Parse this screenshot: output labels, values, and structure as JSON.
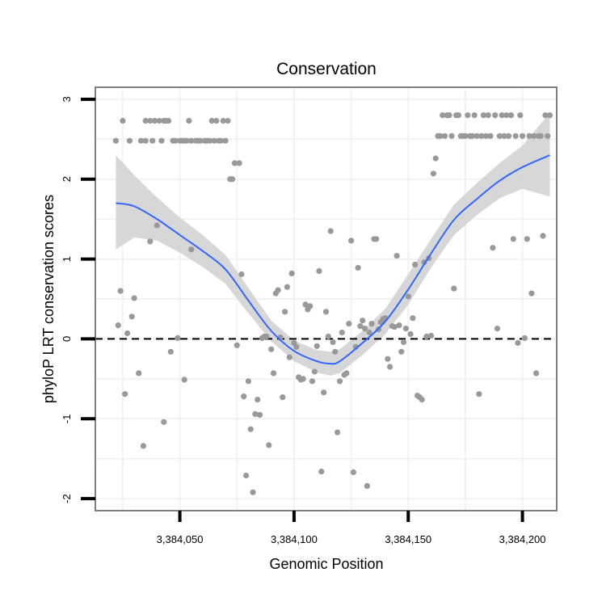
{
  "chart_data": {
    "type": "scatter",
    "title": "Conservation",
    "xlabel": "Genomic Position",
    "ylabel": "phyloP LRT conservation scores",
    "xlim": [
      3384013,
      3384215
    ],
    "ylim": [
      -2.15,
      3.15
    ],
    "x_ticks": [
      {
        "value": 3384050,
        "label": "3,384,050"
      },
      {
        "value": 3384100,
        "label": "3,384,100"
      },
      {
        "value": 3384150,
        "label": "3,384,150"
      },
      {
        "value": 3384200,
        "label": "3,384,200"
      }
    ],
    "y_ticks": [
      {
        "value": -2,
        "label": "-2"
      },
      {
        "value": -1,
        "label": "-1"
      },
      {
        "value": 0,
        "label": "0"
      },
      {
        "value": 1,
        "label": "1"
      },
      {
        "value": 2,
        "label": "2"
      },
      {
        "value": 3,
        "label": "3"
      }
    ],
    "reference_line": {
      "y": 0,
      "style": "dashed"
    },
    "colors": {
      "points": "#999999",
      "smooth": "#3366ff",
      "band": "#d3d3d3",
      "frame": "#7f7f7f",
      "grid": "#f2f2f2"
    },
    "points": [
      [
        3384022,
        2.48
      ],
      [
        3384023,
        0.17
      ],
      [
        3384024,
        0.6
      ],
      [
        3384025,
        2.73
      ],
      [
        3384026,
        -0.69
      ],
      [
        3384027,
        0.07
      ],
      [
        3384028,
        2.48
      ],
      [
        3384029,
        0.28
      ],
      [
        3384030,
        0.51
      ],
      [
        3384032,
        -0.43
      ],
      [
        3384033,
        2.48
      ],
      [
        3384034,
        -1.34
      ],
      [
        3384035,
        2.48
      ],
      [
        3384035,
        2.73
      ],
      [
        3384037,
        2.73
      ],
      [
        3384037,
        1.22
      ],
      [
        3384038,
        2.48
      ],
      [
        3384039,
        2.73
      ],
      [
        3384040,
        1.42
      ],
      [
        3384041,
        2.73
      ],
      [
        3384042,
        2.48
      ],
      [
        3384043,
        2.73
      ],
      [
        3384043,
        -1.04
      ],
      [
        3384044,
        2.73
      ],
      [
        3384045,
        2.73
      ],
      [
        3384046,
        -0.16
      ],
      [
        3384047,
        2.48
      ],
      [
        3384048,
        2.48
      ],
      [
        3384049,
        0.01
      ],
      [
        3384050,
        2.48
      ],
      [
        3384051,
        2.48
      ],
      [
        3384052,
        2.48
      ],
      [
        3384052,
        -0.51
      ],
      [
        3384053,
        2.48
      ],
      [
        3384054,
        2.73
      ],
      [
        3384055,
        1.12
      ],
      [
        3384055,
        2.48
      ],
      [
        3384057,
        2.48
      ],
      [
        3384058,
        2.48
      ],
      [
        3384059,
        2.48
      ],
      [
        3384061,
        2.48
      ],
      [
        3384062,
        2.48
      ],
      [
        3384063,
        2.48
      ],
      [
        3384064,
        2.73
      ],
      [
        3384065,
        2.48
      ],
      [
        3384066,
        2.73
      ],
      [
        3384067,
        2.48
      ],
      [
        3384068,
        2.48
      ],
      [
        3384069,
        2.73
      ],
      [
        3384070,
        2.48
      ],
      [
        3384071,
        2.73
      ],
      [
        3384072,
        2.0
      ],
      [
        3384073,
        2.0
      ],
      [
        3384074,
        2.2
      ],
      [
        3384075,
        -0.08
      ],
      [
        3384076,
        2.2
      ],
      [
        3384077,
        0.81
      ],
      [
        3384078,
        -0.72
      ],
      [
        3384079,
        -1.71
      ],
      [
        3384080,
        -0.53
      ],
      [
        3384081,
        -1.13
      ],
      [
        3384082,
        -1.92
      ],
      [
        3384083,
        -0.94
      ],
      [
        3384084,
        -0.76
      ],
      [
        3384085,
        -0.95
      ],
      [
        3384086,
        0.01
      ],
      [
        3384087,
        0.03
      ],
      [
        3384088,
        0.03
      ],
      [
        3384089,
        -1.33
      ],
      [
        3384090,
        -0.13
      ],
      [
        3384091,
        -0.43
      ],
      [
        3384092,
        0.57
      ],
      [
        3384093,
        0.61
      ],
      [
        3384094,
        0.02
      ],
      [
        3384095,
        -0.73
      ],
      [
        3384096,
        0.34
      ],
      [
        3384097,
        0.65
      ],
      [
        3384098,
        -0.23
      ],
      [
        3384099,
        0.82
      ],
      [
        3384100,
        -0.05
      ],
      [
        3384101,
        -0.1
      ],
      [
        3384102,
        -0.48
      ],
      [
        3384103,
        -0.51
      ],
      [
        3384104,
        -0.5
      ],
      [
        3384105,
        0.43
      ],
      [
        3384106,
        0.37
      ],
      [
        3384107,
        0.41
      ],
      [
        3384108,
        -0.53
      ],
      [
        3384109,
        -0.41
      ],
      [
        3384110,
        -0.09
      ],
      [
        3384111,
        0.85
      ],
      [
        3384112,
        -1.66
      ],
      [
        3384113,
        -0.67
      ],
      [
        3384114,
        0.34
      ],
      [
        3384115,
        0.03
      ],
      [
        3384116,
        1.35
      ],
      [
        3384117,
        -0.04
      ],
      [
        3384118,
        -0.16
      ],
      [
        3384119,
        -1.17
      ],
      [
        3384120,
        -0.53
      ],
      [
        3384121,
        0.08
      ],
      [
        3384122,
        -0.45
      ],
      [
        3384123,
        -0.43
      ],
      [
        3384124,
        0.19
      ],
      [
        3384125,
        1.23
      ],
      [
        3384126,
        -1.67
      ],
      [
        3384127,
        -0.1
      ],
      [
        3384128,
        0.89
      ],
      [
        3384129,
        0.16
      ],
      [
        3384130,
        0.23
      ],
      [
        3384131,
        0.13
      ],
      [
        3384132,
        -1.84
      ],
      [
        3384133,
        0.08
      ],
      [
        3384134,
        0.19
      ],
      [
        3384135,
        1.25
      ],
      [
        3384136,
        1.25
      ],
      [
        3384137,
        0.12
      ],
      [
        3384138,
        0.21
      ],
      [
        3384139,
        0.25
      ],
      [
        3384140,
        0.26
      ],
      [
        3384141,
        -0.25
      ],
      [
        3384142,
        -0.35
      ],
      [
        3384143,
        0.16
      ],
      [
        3384144,
        0.15
      ],
      [
        3384145,
        1.04
      ],
      [
        3384146,
        0.17
      ],
      [
        3384147,
        -0.16
      ],
      [
        3384148,
        -0.04
      ],
      [
        3384149,
        0.13
      ],
      [
        3384150,
        0.53
      ],
      [
        3384151,
        0.06
      ],
      [
        3384152,
        0.26
      ],
      [
        3384153,
        0.93
      ],
      [
        3384154,
        -0.71
      ],
      [
        3384155,
        -0.73
      ],
      [
        3384156,
        -0.76
      ],
      [
        3384157,
        0.96
      ],
      [
        3384158,
        0.03
      ],
      [
        3384159,
        1.01
      ],
      [
        3384160,
        0.04
      ],
      [
        3384161,
        2.07
      ],
      [
        3384162,
        2.26
      ],
      [
        3384163,
        2.54
      ],
      [
        3384164,
        2.54
      ],
      [
        3384165,
        2.8
      ],
      [
        3384166,
        2.54
      ],
      [
        3384167,
        2.8
      ],
      [
        3384168,
        2.8
      ],
      [
        3384169,
        2.54
      ],
      [
        3384170,
        0.63
      ],
      [
        3384171,
        2.8
      ],
      [
        3384172,
        2.8
      ],
      [
        3384173,
        2.54
      ],
      [
        3384174,
        2.54
      ],
      [
        3384175,
        2.54
      ],
      [
        3384176,
        2.8
      ],
      [
        3384177,
        2.54
      ],
      [
        3384178,
        2.54
      ],
      [
        3384179,
        2.8
      ],
      [
        3384180,
        2.54
      ],
      [
        3384181,
        -0.69
      ],
      [
        3384182,
        2.54
      ],
      [
        3384183,
        2.8
      ],
      [
        3384184,
        2.54
      ],
      [
        3384185,
        2.8
      ],
      [
        3384186,
        2.54
      ],
      [
        3384187,
        1.14
      ],
      [
        3384188,
        2.8
      ],
      [
        3384189,
        0.13
      ],
      [
        3384190,
        2.54
      ],
      [
        3384191,
        2.8
      ],
      [
        3384192,
        2.54
      ],
      [
        3384193,
        2.8
      ],
      [
        3384194,
        2.54
      ],
      [
        3384195,
        2.8
      ],
      [
        3384196,
        1.25
      ],
      [
        3384197,
        2.54
      ],
      [
        3384198,
        -0.05
      ],
      [
        3384199,
        2.8
      ],
      [
        3384200,
        2.54
      ],
      [
        3384201,
        0.01
      ],
      [
        3384202,
        1.25
      ],
      [
        3384203,
        2.54
      ],
      [
        3384204,
        0.57
      ],
      [
        3384205,
        2.54
      ],
      [
        3384206,
        -0.43
      ],
      [
        3384207,
        2.54
      ],
      [
        3384208,
        2.54
      ],
      [
        3384209,
        1.29
      ],
      [
        3384210,
        2.8
      ],
      [
        3384211,
        2.54
      ],
      [
        3384212,
        2.8
      ]
    ],
    "smooth": {
      "method": "loess",
      "x": [
        3384022,
        3384030,
        3384040,
        3384050,
        3384060,
        3384070,
        3384080,
        3384090,
        3384100,
        3384110,
        3384116,
        3384120,
        3384130,
        3384140,
        3384150,
        3384160,
        3384170,
        3384180,
        3384190,
        3384200,
        3384212
      ],
      "y": [
        1.7,
        1.66,
        1.5,
        1.3,
        1.1,
        0.87,
        0.48,
        0.1,
        -0.15,
        -0.28,
        -0.31,
        -0.28,
        -0.05,
        0.22,
        0.62,
        1.07,
        1.49,
        1.75,
        1.98,
        2.15,
        2.3
      ],
      "lower": [
        1.12,
        1.27,
        1.23,
        1.08,
        0.9,
        0.69,
        0.32,
        -0.03,
        -0.28,
        -0.42,
        -0.46,
        -0.43,
        -0.2,
        0.06,
        0.43,
        0.89,
        1.3,
        1.55,
        1.76,
        1.88,
        1.78
      ],
      "upper": [
        2.3,
        2.05,
        1.77,
        1.52,
        1.3,
        1.05,
        0.64,
        0.23,
        -0.02,
        -0.14,
        -0.16,
        -0.13,
        0.1,
        0.38,
        0.81,
        1.25,
        1.68,
        1.95,
        2.2,
        2.42,
        2.83
      ]
    }
  }
}
